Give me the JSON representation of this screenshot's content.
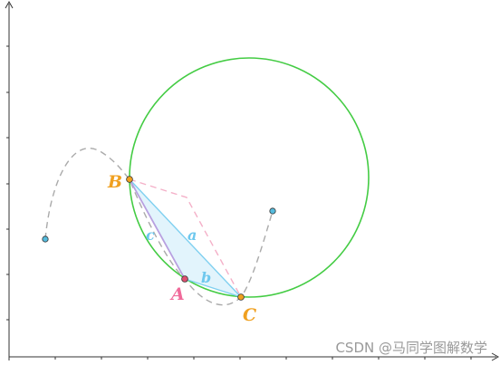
{
  "points": {
    "A": {
      "label": "A"
    },
    "B": {
      "label": "B"
    },
    "C": {
      "label": "C"
    }
  },
  "sides": {
    "a": {
      "label": "a"
    },
    "b": {
      "label": "b"
    },
    "c": {
      "label": "c"
    }
  },
  "watermark": "CSDN @马同学图解数学",
  "colors": {
    "circle": "#44cc44",
    "triangle_fill": "#e2f4fc",
    "triangle_edge": "#7fd0f0",
    "side_c_edge": "#b8a0e0",
    "side_label": "#6ec8ee",
    "label_A": "#f06a9a",
    "label_B": "#f0a020",
    "label_C": "#f0a020",
    "point_A": "#e05070",
    "point_B": "#f0a020",
    "point_C": "#f0a020",
    "pink_dashed": "#f4b0c8",
    "gray_dashed": "#aaaaaa",
    "endpoint": "#55bbdd",
    "axis": "#333333",
    "watermark": "#999999"
  }
}
